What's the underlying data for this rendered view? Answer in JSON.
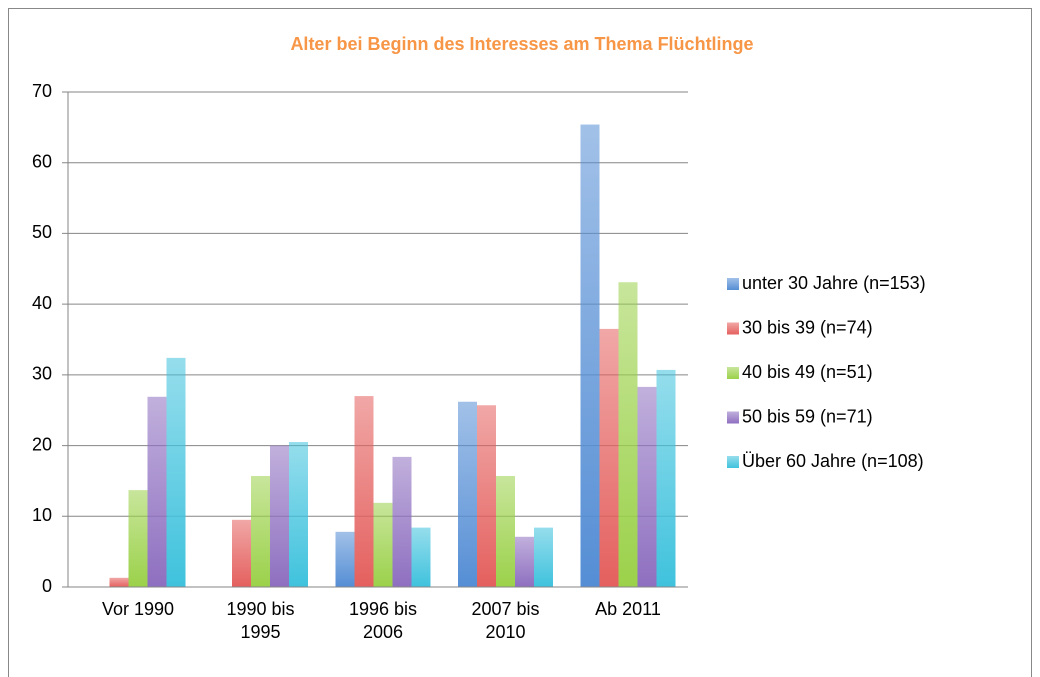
{
  "chart_data": {
    "type": "bar",
    "title": "Alter bei Beginn des Interesses am Thema Flüchtlinge",
    "categories": [
      "Vor 1990",
      "1990 bis 1995",
      "1996 bis 2006",
      "2007 bis 2010",
      "Ab 2011"
    ],
    "series": [
      {
        "name": "unter 30 Jahre (n=153)",
        "color": "#558ed5",
        "values": [
          0,
          0,
          7.8,
          26.2,
          65.4
        ]
      },
      {
        "name": "30 bis 39 (n=74)",
        "color": "#e4605e",
        "values": [
          1.3,
          9.5,
          27,
          25.7,
          36.5
        ]
      },
      {
        "name": "40 bis 49 (n=51)",
        "color": "#9bd14a",
        "values": [
          13.7,
          15.7,
          11.9,
          15.7,
          43.1
        ]
      },
      {
        "name": "50 bis 59 (n=71)",
        "color": "#8e6fc0",
        "values": [
          26.9,
          20,
          18.4,
          7.1,
          28.3
        ]
      },
      {
        "name": "Über 60 Jahre (n=108)",
        "color": "#3fc2dd",
        "values": [
          32.4,
          20.5,
          8.4,
          8.4,
          30.7
        ]
      }
    ],
    "ylim": [
      0,
      70
    ],
    "yticks": [
      0,
      10,
      20,
      30,
      40,
      50,
      60,
      70
    ],
    "grid": true,
    "legend": "right"
  }
}
